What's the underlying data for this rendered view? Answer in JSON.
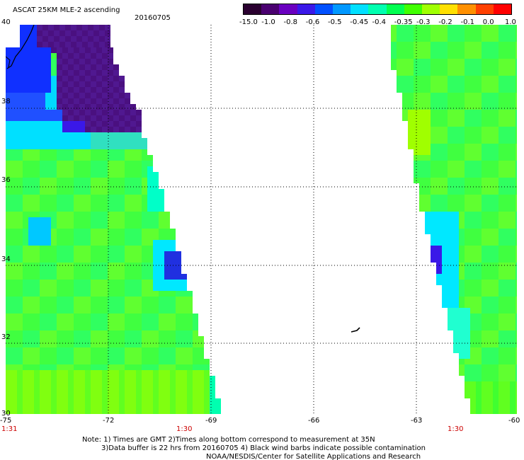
{
  "title": "ASCAT 25KM MLE-2 ascending",
  "date": "20160705",
  "colorbar": {
    "labels": [
      "-15.0",
      "-1.0",
      "-0.8",
      "-0.6",
      "-0.5",
      "-0.45",
      "-0.4",
      "-0.35",
      "-0.3",
      "-0.2",
      "-0.1",
      "0.0",
      "1.0"
    ],
    "colors": [
      "#2a0030",
      "#4a0070",
      "#6a00c0",
      "#3a18e8",
      "#0050ff",
      "#0098ff",
      "#00e0ff",
      "#00ffb0",
      "#00ff50",
      "#40ff00",
      "#a0ff00",
      "#ffe000",
      "#ff9000",
      "#ff4000",
      "#ff0000"
    ]
  },
  "axes": {
    "lon_ticks": [
      "-75",
      "-72",
      "-69",
      "-66",
      "-63",
      "-60"
    ],
    "lat_ticks": [
      "40",
      "38",
      "36",
      "34",
      "32",
      "30"
    ]
  },
  "time_labels": [
    "1:31",
    "1:30",
    "1:30"
  ],
  "notes": [
    "Note: 1) Times are GMT 2)Times along bottom correspond to measurement at 35N",
    "3)Data buffer is 22 hrs from 20160705 4) Black wind barbs indicate possible contamination",
    "NOAA/NESDIS/Center for Satellite Applications and Research"
  ]
}
